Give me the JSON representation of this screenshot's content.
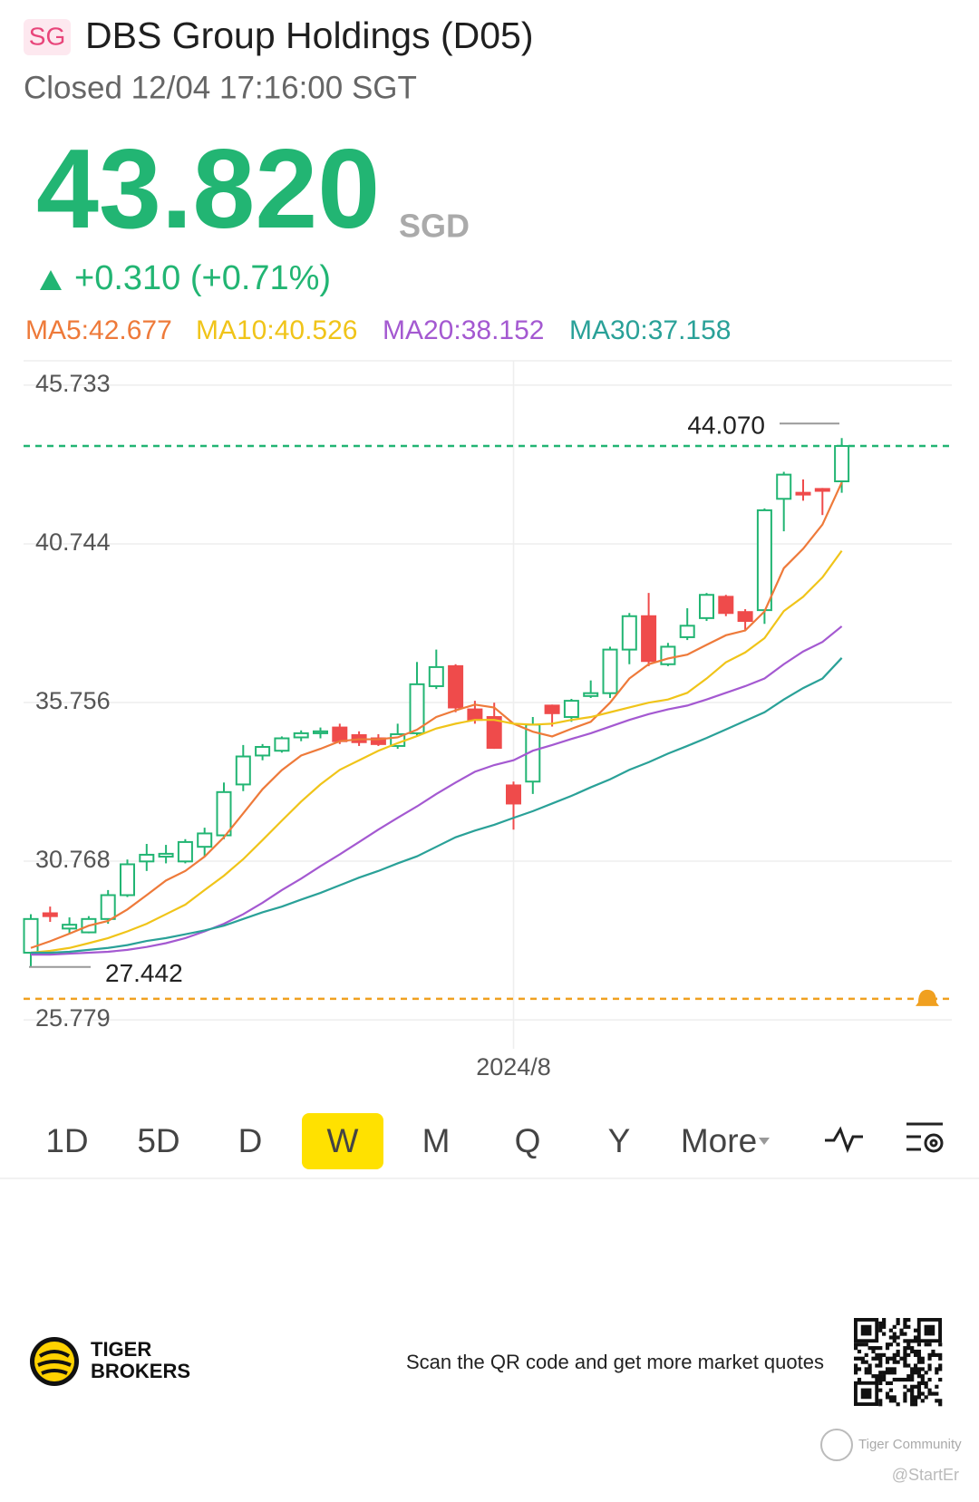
{
  "header": {
    "badge": "SG",
    "title": "DBS Group Holdings (D05)",
    "status": "Closed 12/04 17:16:00 SGT"
  },
  "quote": {
    "price": "43.820",
    "currency": "SGD",
    "change": "+0.310 (+0.71%)",
    "color": "#22b573"
  },
  "chart_data": {
    "type": "candlestick",
    "categories": [
      null,
      null,
      null,
      null,
      null,
      null,
      null,
      null,
      null,
      null,
      null,
      null,
      null,
      null,
      null,
      null,
      null,
      null,
      null,
      null,
      null,
      null,
      null,
      null,
      null,
      "2024/8",
      null,
      null,
      null,
      null,
      null,
      null,
      null,
      null,
      null,
      null,
      null,
      null,
      null,
      null,
      null,
      null,
      null
    ],
    "open": [
      27.89,
      29.13,
      28.65,
      28.53,
      28.95,
      29.7,
      30.76,
      30.91,
      30.76,
      31.22,
      31.58,
      33.18,
      34.09,
      34.24,
      34.66,
      34.79,
      34.97,
      34.73,
      34.63,
      34.39,
      34.79,
      36.27,
      36.9,
      35.54,
      35.3,
      33.15,
      33.27,
      35.66,
      35.3,
      35.96,
      36.05,
      37.42,
      38.47,
      36.96,
      37.81,
      38.41,
      39.08,
      38.6,
      38.66,
      42.16,
      42.35,
      42.47,
      42.71
    ],
    "high": [
      29.1,
      29.34,
      29.0,
      29.04,
      29.86,
      30.82,
      31.31,
      31.28,
      31.46,
      31.82,
      33.24,
      34.42,
      34.45,
      34.69,
      34.88,
      34.97,
      35.09,
      34.85,
      34.76,
      35.09,
      37.03,
      37.42,
      36.96,
      35.81,
      35.75,
      33.27,
      35.3,
      35.69,
      35.87,
      36.45,
      37.51,
      38.57,
      39.2,
      37.63,
      38.72,
      39.2,
      39.14,
      38.69,
      41.86,
      43.01,
      42.77,
      42.5,
      44.07
    ],
    "low": [
      27.442,
      28.86,
      28.5,
      28.5,
      28.8,
      29.64,
      30.46,
      30.7,
      30.7,
      30.91,
      31.46,
      32.97,
      33.94,
      34.18,
      34.54,
      34.63,
      34.45,
      34.39,
      34.39,
      34.3,
      34.7,
      36.18,
      35.45,
      35.09,
      34.3,
      31.76,
      32.88,
      35.0,
      35.15,
      35.9,
      35.9,
      36.96,
      36.9,
      36.9,
      37.72,
      38.32,
      38.47,
      38.02,
      38.23,
      41.14,
      42.1,
      41.65,
      42.35
    ],
    "close": [
      28.95,
      29.04,
      28.77,
      28.95,
      29.7,
      30.67,
      30.97,
      31.0,
      31.37,
      31.64,
      32.94,
      34.06,
      34.36,
      34.63,
      34.79,
      34.85,
      34.54,
      34.51,
      34.45,
      34.76,
      36.33,
      36.87,
      35.6,
      35.21,
      34.33,
      32.58,
      35.06,
      35.42,
      35.81,
      36.05,
      37.42,
      38.47,
      37.06,
      37.51,
      38.17,
      39.14,
      38.57,
      38.32,
      41.8,
      42.92,
      42.32,
      42.41,
      43.82
    ],
    "up_color": "#22b573",
    "down_color": "#ef4b4b",
    "series": [
      {
        "name": "MA5:42.677",
        "color": "#ee7a3a",
        "values": [
          28.04,
          28.25,
          28.49,
          28.74,
          28.89,
          29.25,
          29.7,
          30.16,
          30.46,
          30.91,
          31.52,
          32.27,
          33.03,
          33.63,
          34.09,
          34.3,
          34.54,
          34.6,
          34.6,
          34.66,
          34.9,
          35.3,
          35.51,
          35.69,
          35.6,
          35.09,
          34.84,
          34.69,
          34.93,
          35.15,
          35.75,
          36.51,
          36.96,
          37.14,
          37.26,
          37.57,
          37.87,
          38.02,
          38.62,
          39.98,
          40.59,
          41.35,
          42.677
        ]
      },
      {
        "name": "MA10:40.526",
        "color": "#f0c419",
        "values": [
          27.89,
          27.95,
          28.04,
          28.19,
          28.35,
          28.56,
          28.8,
          29.1,
          29.4,
          29.86,
          30.31,
          30.83,
          31.43,
          32.04,
          32.64,
          33.18,
          33.64,
          33.94,
          34.24,
          34.48,
          34.7,
          34.94,
          35.09,
          35.21,
          35.21,
          35.09,
          35.06,
          35.09,
          35.21,
          35.3,
          35.45,
          35.6,
          35.75,
          35.85,
          36.06,
          36.51,
          37.02,
          37.33,
          37.78,
          38.63,
          39.08,
          39.69,
          40.526
        ]
      },
      {
        "name": "MA20:38.152",
        "color": "#a459d1",
        "values": [
          27.83,
          27.83,
          27.86,
          27.89,
          27.92,
          27.98,
          28.07,
          28.19,
          28.35,
          28.56,
          28.8,
          29.1,
          29.46,
          29.86,
          30.22,
          30.61,
          30.98,
          31.37,
          31.76,
          32.13,
          32.49,
          32.88,
          33.24,
          33.58,
          33.79,
          33.94,
          34.24,
          34.42,
          34.61,
          34.79,
          35.0,
          35.21,
          35.39,
          35.54,
          35.66,
          35.85,
          36.06,
          36.27,
          36.51,
          36.96,
          37.36,
          37.66,
          38.152
        ]
      },
      {
        "name": "MA30:37.158",
        "color": "#2aa198",
        "values": [
          27.89,
          27.89,
          27.92,
          27.98,
          28.04,
          28.13,
          28.26,
          28.35,
          28.47,
          28.59,
          28.74,
          28.95,
          29.16,
          29.34,
          29.56,
          29.77,
          30.01,
          30.25,
          30.46,
          30.7,
          30.92,
          31.22,
          31.52,
          31.73,
          31.91,
          32.13,
          32.34,
          32.58,
          32.82,
          33.09,
          33.34,
          33.64,
          33.88,
          34.15,
          34.39,
          34.64,
          34.91,
          35.18,
          35.45,
          35.85,
          36.21,
          36.51,
          37.158
        ]
      }
    ],
    "ylim": [
      24.87,
      46.5
    ],
    "yticks": [
      45.733,
      40.744,
      35.756,
      30.768,
      25.779
    ],
    "grid": true,
    "price_line": 43.82,
    "price_line_color": "#22b573",
    "alert_line": 26.44,
    "alert_color": "#f0a020",
    "high_label": {
      "value": 44.07,
      "label": "44.070"
    },
    "low_label": {
      "value": 27.442,
      "label": "27.442"
    }
  },
  "periods": [
    "1D",
    "5D",
    "D",
    "W",
    "M",
    "Q",
    "Y",
    "More"
  ],
  "active_period": "W",
  "footer": {
    "brand_top": "TIGER",
    "brand_bottom": "BROKERS",
    "cta": "Scan the QR code and get more market quotes",
    "watermark": "Tiger Community",
    "handle": "@StartEr"
  }
}
